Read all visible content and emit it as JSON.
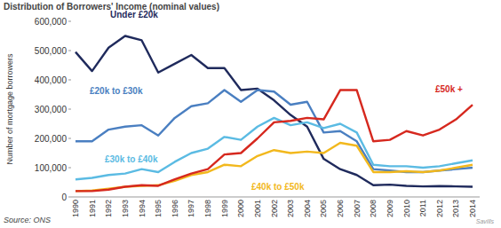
{
  "chart_data": {
    "type": "line",
    "title": "Distribution of Borrowers' Income (nominal values)",
    "y_label": "Number of mortgage borrowers",
    "annotations": [
      "Source: ONS",
      "Savills"
    ],
    "categories": [
      "1990",
      "1991",
      "1992",
      "1993",
      "1994",
      "1995",
      "1996",
      "1997",
      "1998",
      "1999",
      "2000",
      "2001",
      "2002",
      "2003",
      "2004",
      "2005",
      "2006",
      "2007",
      "2008",
      "2009",
      "2010",
      "2011",
      "2012",
      "2013",
      "2014"
    ],
    "series": [
      {
        "name": "Under £20k",
        "color": "#1f2a5c",
        "values": [
          495000,
          430000,
          510000,
          550000,
          535000,
          425000,
          455000,
          485000,
          440000,
          440000,
          365000,
          370000,
          330000,
          280000,
          240000,
          130000,
          95000,
          75000,
          40000,
          42000,
          38000,
          36000,
          37000,
          36000,
          35000
        ]
      },
      {
        "name": "£20k to £30k",
        "color": "#4a7fc1",
        "values": [
          190000,
          190000,
          230000,
          240000,
          245000,
          210000,
          270000,
          310000,
          320000,
          365000,
          325000,
          365000,
          360000,
          315000,
          325000,
          220000,
          225000,
          190000,
          95000,
          90000,
          85000,
          85000,
          90000,
          95000,
          100000
        ]
      },
      {
        "name": "£30k to £40k",
        "color": "#5bbbe3",
        "values": [
          60000,
          65000,
          75000,
          80000,
          95000,
          85000,
          120000,
          150000,
          165000,
          205000,
          195000,
          240000,
          270000,
          245000,
          255000,
          235000,
          250000,
          220000,
          110000,
          105000,
          105000,
          100000,
          105000,
          115000,
          125000
        ]
      },
      {
        "name": "£40k to £50k",
        "color": "#f2b81d",
        "values": [
          20000,
          22000,
          28000,
          35000,
          38000,
          40000,
          55000,
          75000,
          85000,
          110000,
          105000,
          140000,
          160000,
          150000,
          155000,
          150000,
          185000,
          175000,
          85000,
          85000,
          88000,
          85000,
          90000,
          100000,
          110000
        ]
      },
      {
        "name": "£50k +",
        "color": "#d6281e",
        "values": [
          20000,
          20000,
          25000,
          35000,
          40000,
          38000,
          60000,
          80000,
          95000,
          145000,
          150000,
          200000,
          255000,
          260000,
          270000,
          265000,
          365000,
          365000,
          190000,
          195000,
          225000,
          210000,
          230000,
          265000,
          315000
        ]
      }
    ],
    "ylim": [
      0,
      600000
    ],
    "yticks": [
      0,
      {
        "value": 100000,
        "label": "100,000"
      },
      {
        "value": 200000,
        "label": "200,000"
      },
      {
        "value": 300000,
        "label": "300,000"
      },
      {
        "value": 400000,
        "label": "400,000"
      },
      {
        "value": 500000,
        "label": "500,000"
      },
      {
        "value": 600000,
        "label": "600,000"
      }
    ],
    "grid": false
  }
}
